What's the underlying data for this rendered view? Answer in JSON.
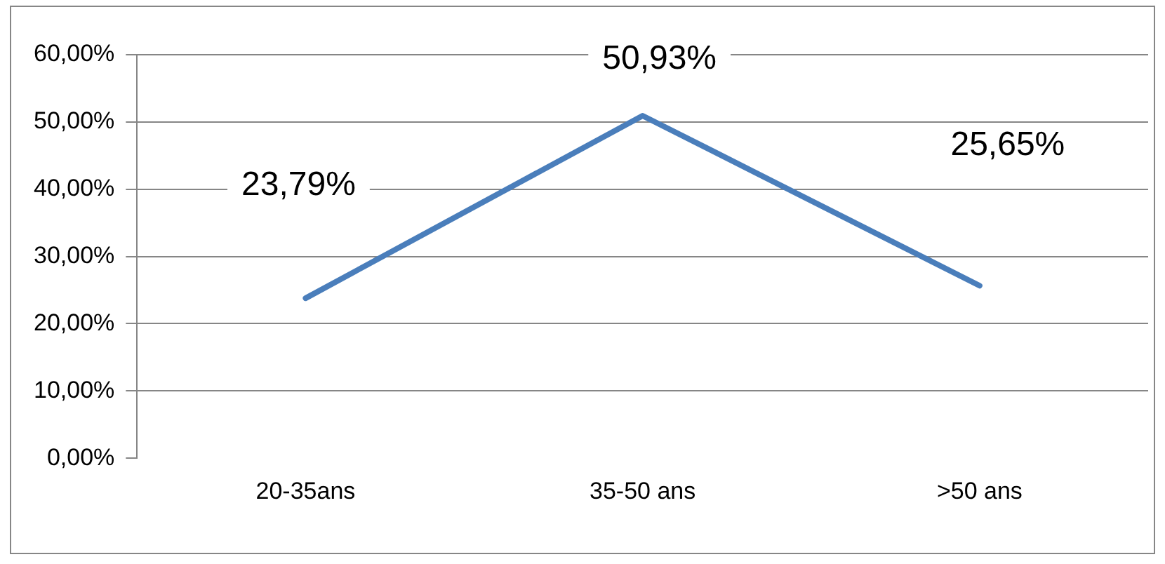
{
  "chart_data": {
    "type": "line",
    "categories": [
      "20-35ans",
      "35-50 ans",
      ">50 ans"
    ],
    "series": [
      {
        "color": "#4a7ebb",
        "values": [
          23.79,
          50.93,
          25.65
        ]
      }
    ],
    "value_labels": [
      "23,79%",
      "50,93%",
      "25,65%"
    ],
    "ylim": [
      0,
      60
    ],
    "yticks": [
      {
        "value": 0,
        "label": "0,00%"
      },
      {
        "value": 10,
        "label": "10,00%"
      },
      {
        "value": 20,
        "label": "20,00%"
      },
      {
        "value": 30,
        "label": "30,00%"
      },
      {
        "value": 40,
        "label": "40,00%"
      },
      {
        "value": 50,
        "label": "50,00%"
      },
      {
        "value": 60,
        "label": "60,00%"
      }
    ],
    "grid": "y",
    "legend": false,
    "marker": "none",
    "line_style": "solid"
  }
}
